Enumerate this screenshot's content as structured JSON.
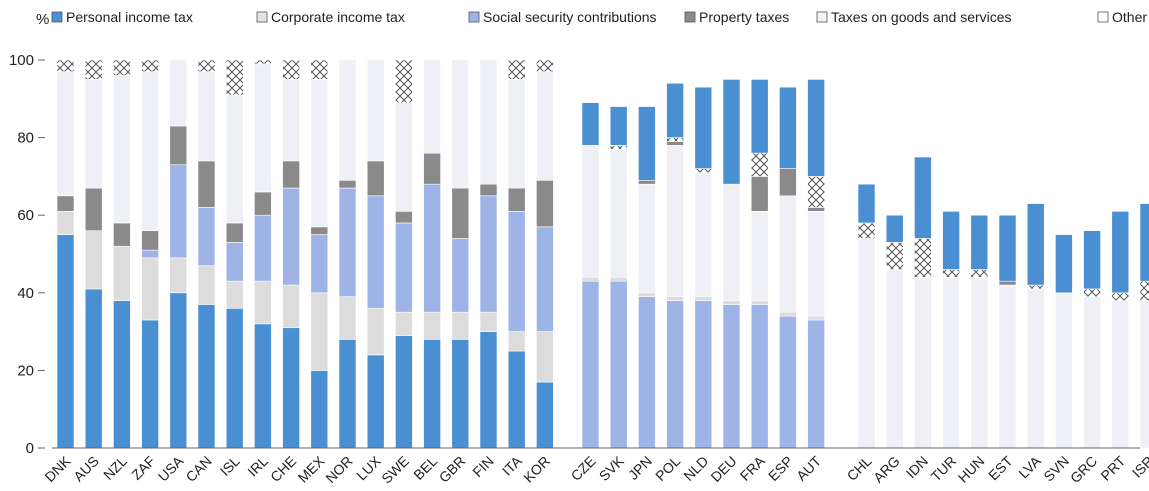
{
  "chart_data": {
    "type": "bar",
    "stacked": true,
    "ylabel": "%",
    "ylim": [
      0,
      100
    ],
    "yticks": [
      0,
      20,
      40,
      60,
      80,
      100
    ],
    "grid": false,
    "legend_position": "top",
    "legend": [
      {
        "name": "Personal income tax",
        "swatch": "#4a8fd1",
        "key": "pit"
      },
      {
        "name": "Corporate income tax",
        "swatch": "#e4e4e4",
        "key": "cit"
      },
      {
        "name": "Social security contributions",
        "swatch": "#9fb4e6",
        "key": "ssc"
      },
      {
        "name": "Property taxes",
        "swatch": "#8a8a8a",
        "key": "prop"
      },
      {
        "name": "Taxes on goods and services",
        "swatch": "#f2f4f8",
        "key": "gs"
      },
      {
        "name": "Other",
        "swatch": "#ffffff",
        "key": "other"
      }
    ],
    "colors": {
      "g1": {
        "pit": "#4a8fd1",
        "cit": "#dcdcdc",
        "ssc": "#9fb4e6",
        "prop": "#8a8a8a",
        "gs": "#eef0f6",
        "other": "#ffffff"
      },
      "g2": {
        "ssc": "#9fb4e6",
        "cit": "#dcdcdc",
        "gs": "#eef0f6",
        "prop": "#8a8a8a",
        "other": "#ffffff",
        "pit": "#4a8fd1"
      },
      "g3": {
        "gs": "#eef0f6",
        "other": "#ffffff",
        "prop": "#8a8a8a",
        "cit": "#dcdcdc",
        "pit": "#4a8fd1",
        "ssc": "#a9cdea"
      }
    },
    "groups": [
      {
        "id": "g1",
        "order": [
          "pit",
          "cit",
          "ssc",
          "prop",
          "gs",
          "other"
        ],
        "categories": [
          "DNK",
          "AUS",
          "NZL",
          "ZAF",
          "USA",
          "CAN",
          "ISL",
          "IRL",
          "CHE",
          "MEX",
          "NOR",
          "LUX",
          "SWE",
          "BEL",
          "GBR",
          "FIN",
          "ITA",
          "KOR"
        ],
        "series": {
          "pit": [
            55,
            41,
            38,
            33,
            40,
            37,
            36,
            32,
            31,
            20,
            28,
            24,
            29,
            28,
            28,
            30,
            25,
            17
          ],
          "cit": [
            6,
            15,
            14,
            16,
            9,
            10,
            7,
            11,
            11,
            20,
            11,
            12,
            6,
            7,
            7,
            5,
            5,
            13
          ],
          "ssc": [
            0,
            0,
            0,
            2,
            24,
            15,
            10,
            17,
            25,
            15,
            28,
            29,
            23,
            33,
            19,
            30,
            31,
            27
          ],
          "prop": [
            4,
            11,
            6,
            5,
            10,
            12,
            5,
            6,
            7,
            2,
            2,
            9,
            3,
            8,
            13,
            3,
            6,
            12
          ],
          "gs": [
            32,
            28,
            38,
            41,
            17,
            23,
            33,
            33,
            21,
            38,
            31,
            26,
            28,
            24,
            33,
            32,
            28,
            28
          ],
          "other": [
            3,
            5,
            4,
            3,
            0,
            3,
            9,
            1,
            5,
            5,
            0,
            0,
            11,
            0,
            0,
            0,
            5,
            3
          ]
        }
      },
      {
        "id": "g2",
        "order": [
          "ssc",
          "cit",
          "gs",
          "prop",
          "other",
          "pit"
        ],
        "categories": [
          "CZE",
          "SVK",
          "JPN",
          "POL",
          "NLD",
          "DEU",
          "FRA",
          "ESP",
          "AUT"
        ],
        "series": {
          "ssc": [
            43,
            43,
            39,
            38,
            38,
            37,
            37,
            34,
            33
          ],
          "cit": [
            1,
            1,
            1,
            1,
            1,
            1,
            1,
            1,
            1
          ],
          "gs": [
            34,
            33,
            28,
            39,
            32,
            30,
            23,
            30,
            27
          ],
          "prop": [
            0,
            0,
            1,
            1,
            0,
            0,
            9,
            7,
            1
          ],
          "other": [
            0,
            1,
            0,
            1,
            1,
            0,
            6,
            0,
            8
          ],
          "pit": [
            11,
            10,
            19,
            14,
            21,
            27,
            19,
            21,
            25
          ]
        }
      },
      {
        "id": "g3",
        "order": [
          "gs",
          "other",
          "prop",
          "cit",
          "pit",
          "ssc"
        ],
        "categories": [
          "CHL",
          "ARG",
          "IDN",
          "TUR",
          "HUN",
          "EST",
          "LVA",
          "SVN",
          "GRC",
          "PRT",
          "ISR"
        ],
        "series": {
          "gs": [
            54,
            46,
            44,
            44,
            44,
            42,
            41,
            40,
            39,
            38,
            38
          ],
          "other": [
            4,
            7,
            10,
            2,
            2,
            0,
            1,
            0,
            2,
            2,
            5
          ],
          "prop": [
            0,
            0,
            0,
            0,
            0,
            1,
            0,
            0,
            0,
            0,
            0
          ],
          "cit": [
            0,
            0,
            0,
            0,
            0,
            0,
            0,
            0,
            0,
            0,
            0
          ],
          "pit": [
            10,
            7,
            21,
            15,
            14,
            17,
            21,
            15,
            15,
            21,
            20
          ],
          "ssc": [
            0,
            0,
            0,
            0,
            0,
            0,
            0,
            0,
            0,
            0,
            0
          ]
        }
      }
    ]
  }
}
